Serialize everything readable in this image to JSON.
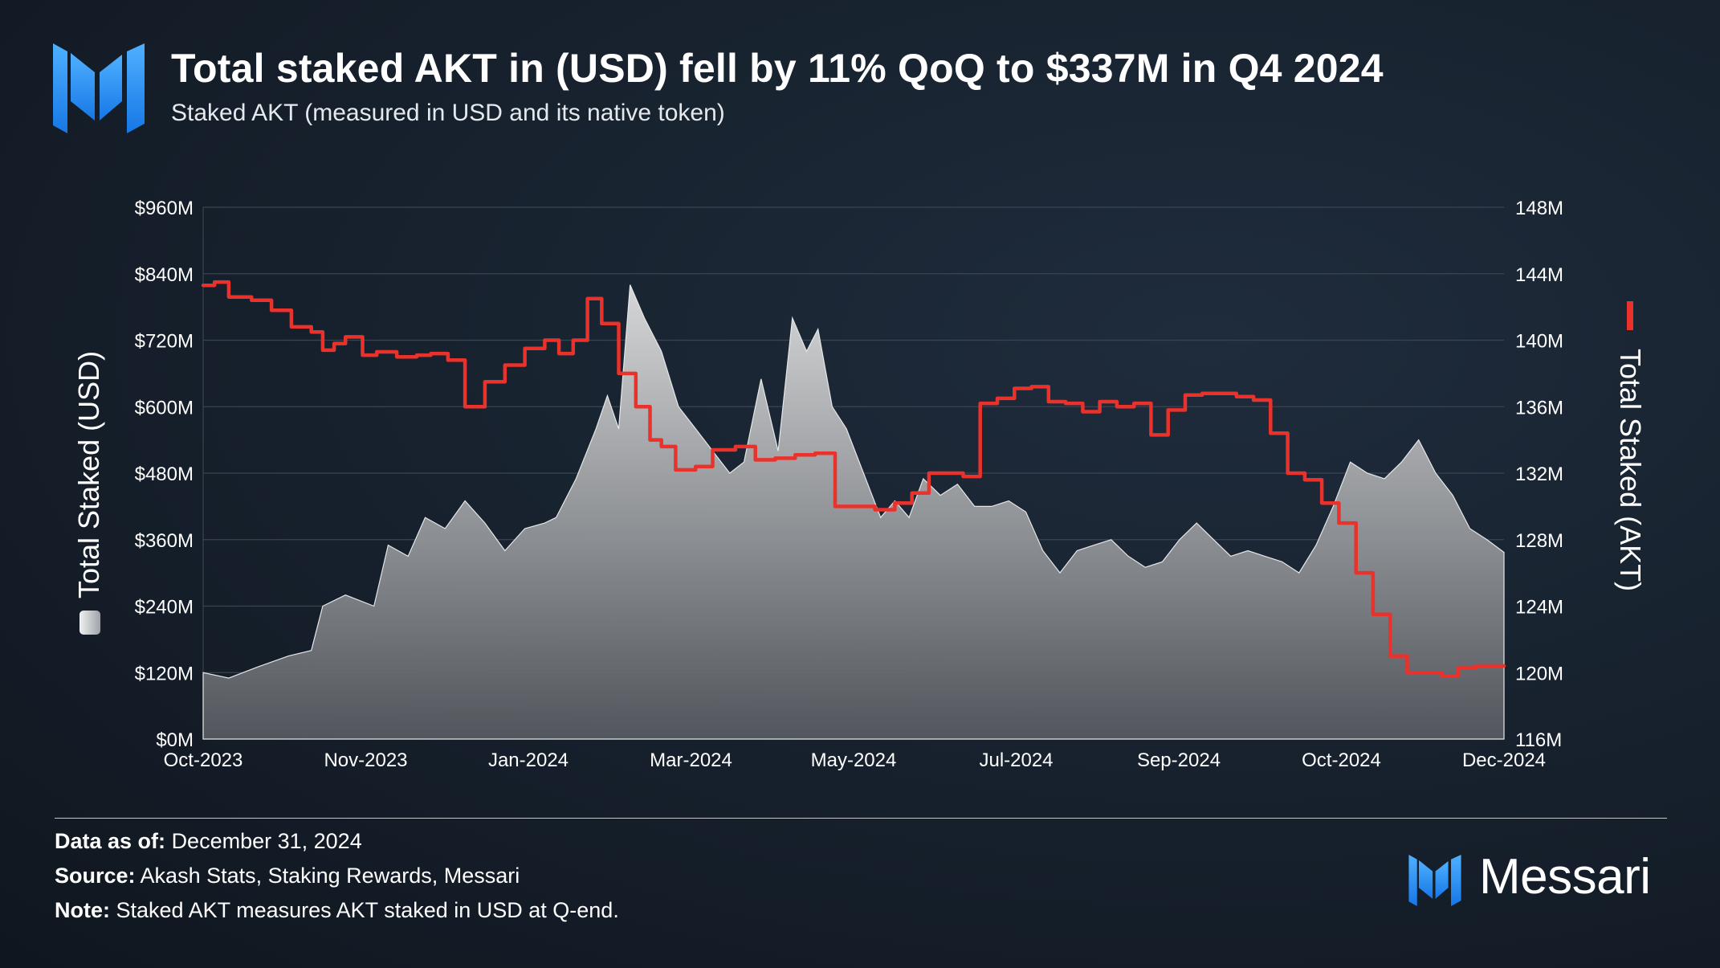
{
  "header": {
    "title": "Total staked AKT in (USD) fell by 11% QoQ to $337M in Q4 2024",
    "subtitle": "Staked AKT (measured in USD and its native token)",
    "logo_icon": "messari-logo-icon"
  },
  "colors": {
    "accent_blue": "#1c8ef0",
    "akt_line": "#e8322b",
    "usd_area_top": "#d9dadb",
    "usd_area_bottom": "#55595f",
    "grid": "#3a4452"
  },
  "chart_data": {
    "type": "area",
    "title": "",
    "grid": true,
    "x_ticks": [
      "Oct-2023",
      "Nov-2023",
      "Jan-2024",
      "Mar-2024",
      "May-2024",
      "Jul-2024",
      "Sep-2024",
      "Oct-2024",
      "Dec-2024"
    ],
    "y_left": {
      "label": "Total Staked (USD)",
      "ticks": [
        "$0M",
        "$120M",
        "$240M",
        "$360M",
        "$480M",
        "$600M",
        "$720M",
        "$840M",
        "$960M"
      ],
      "range": [
        0,
        960
      ]
    },
    "y_right": {
      "label": "Total Staked (AKT)",
      "ticks": [
        "116M",
        "120M",
        "124M",
        "128M",
        "132M",
        "136M",
        "140M",
        "144M",
        "148M"
      ],
      "range": [
        116,
        148
      ]
    },
    "x_range": [
      "2023-10-01",
      "2024-12-31"
    ],
    "series": [
      {
        "key": "usd",
        "chart": "area",
        "axis": "left",
        "x": [
          "2023-10-01",
          "2023-10-10",
          "2023-10-20",
          "2023-10-31",
          "2023-11-08",
          "2023-11-12",
          "2023-11-20",
          "2023-11-30",
          "2023-12-05",
          "2023-12-12",
          "2023-12-18",
          "2023-12-25",
          "2024-01-01",
          "2024-01-08",
          "2024-01-15",
          "2024-01-22",
          "2024-01-29",
          "2024-02-02",
          "2024-02-09",
          "2024-02-16",
          "2024-02-20",
          "2024-02-24",
          "2024-02-28",
          "2024-03-04",
          "2024-03-10",
          "2024-03-16",
          "2024-03-22",
          "2024-03-28",
          "2024-04-03",
          "2024-04-08",
          "2024-04-14",
          "2024-04-20",
          "2024-04-25",
          "2024-04-30",
          "2024-05-04",
          "2024-05-09",
          "2024-05-14",
          "2024-05-20",
          "2024-05-26",
          "2024-05-31",
          "2024-06-05",
          "2024-06-10",
          "2024-06-16",
          "2024-06-22",
          "2024-06-28",
          "2024-07-04",
          "2024-07-10",
          "2024-07-16",
          "2024-07-22",
          "2024-07-28",
          "2024-08-03",
          "2024-08-09",
          "2024-08-15",
          "2024-08-21",
          "2024-08-27",
          "2024-09-02",
          "2024-09-08",
          "2024-09-14",
          "2024-09-20",
          "2024-09-26",
          "2024-10-02",
          "2024-10-08",
          "2024-10-14",
          "2024-10-20",
          "2024-10-26",
          "2024-11-01",
          "2024-11-07",
          "2024-11-13",
          "2024-11-19",
          "2024-11-25",
          "2024-12-01",
          "2024-12-07",
          "2024-12-13",
          "2024-12-19",
          "2024-12-25",
          "2024-12-31"
        ],
        "values": [
          120,
          110,
          130,
          150,
          160,
          240,
          260,
          240,
          350,
          330,
          400,
          380,
          430,
          390,
          340,
          380,
          390,
          400,
          470,
          560,
          620,
          560,
          820,
          760,
          700,
          600,
          560,
          520,
          480,
          500,
          650,
          520,
          760,
          700,
          740,
          600,
          560,
          480,
          400,
          430,
          400,
          470,
          440,
          460,
          420,
          420,
          430,
          410,
          340,
          300,
          340,
          350,
          360,
          330,
          310,
          320,
          360,
          390,
          360,
          330,
          340,
          330,
          320,
          300,
          350,
          420,
          500,
          480,
          470,
          500,
          540,
          480,
          440,
          380,
          360,
          337
        ]
      },
      {
        "key": "akt",
        "chart": "line",
        "axis": "right",
        "x": [
          "2023-10-01",
          "2023-10-05",
          "2023-10-10",
          "2023-10-18",
          "2023-10-25",
          "2023-11-01",
          "2023-11-08",
          "2023-11-12",
          "2023-11-16",
          "2023-11-20",
          "2023-11-26",
          "2023-12-01",
          "2023-12-08",
          "2023-12-15",
          "2023-12-20",
          "2023-12-26",
          "2024-01-01",
          "2024-01-08",
          "2024-01-15",
          "2024-01-22",
          "2024-01-29",
          "2024-02-03",
          "2024-02-08",
          "2024-02-13",
          "2024-02-18",
          "2024-02-24",
          "2024-03-01",
          "2024-03-06",
          "2024-03-10",
          "2024-03-15",
          "2024-03-22",
          "2024-03-28",
          "2024-04-05",
          "2024-04-12",
          "2024-04-19",
          "2024-04-26",
          "2024-05-03",
          "2024-05-10",
          "2024-05-17",
          "2024-05-24",
          "2024-05-31",
          "2024-06-06",
          "2024-06-12",
          "2024-06-18",
          "2024-06-24",
          "2024-06-30",
          "2024-07-06",
          "2024-07-12",
          "2024-07-18",
          "2024-07-24",
          "2024-07-30",
          "2024-08-05",
          "2024-08-11",
          "2024-08-17",
          "2024-08-23",
          "2024-08-29",
          "2024-09-04",
          "2024-09-10",
          "2024-09-16",
          "2024-09-22",
          "2024-09-28",
          "2024-10-04",
          "2024-10-10",
          "2024-10-16",
          "2024-10-22",
          "2024-10-28",
          "2024-11-03",
          "2024-11-09",
          "2024-11-15",
          "2024-11-21",
          "2024-11-27",
          "2024-12-03",
          "2024-12-09",
          "2024-12-15",
          "2024-12-21",
          "2024-12-27",
          "2024-12-31"
        ],
        "values": [
          143.3,
          143.5,
          142.6,
          142.4,
          141.8,
          140.8,
          140.5,
          139.4,
          139.8,
          140.2,
          139.1,
          139.3,
          139.0,
          139.1,
          139.2,
          138.8,
          136.0,
          137.5,
          138.5,
          139.5,
          140.0,
          139.2,
          140.0,
          142.5,
          141.0,
          138.0,
          136.0,
          134.0,
          133.6,
          132.2,
          132.4,
          133.4,
          133.6,
          132.8,
          132.9,
          133.1,
          133.2,
          130.0,
          130.0,
          129.8,
          130.2,
          130.8,
          132.0,
          132.0,
          131.8,
          136.2,
          136.5,
          137.1,
          137.2,
          136.3,
          136.2,
          135.7,
          136.3,
          136.0,
          136.2,
          134.3,
          135.8,
          136.7,
          136.8,
          136.8,
          136.6,
          136.4,
          134.4,
          132.0,
          131.6,
          130.2,
          129.0,
          126.0,
          123.5,
          121.0,
          120.0,
          120.0,
          119.8,
          120.3,
          120.4,
          120.4,
          120.4
        ]
      }
    ]
  },
  "footer": {
    "data_as_of_label": "Data as of:",
    "data_as_of_value": "December 31, 2024",
    "source_label": "Source:",
    "source_value": "Akash Stats, Staking Rewards, Messari",
    "note_label": "Note:",
    "note_value": "Staked AKT measures AKT staked in USD at Q-end.",
    "brand_name": "Messari",
    "brand_icon": "messari-logo-icon"
  }
}
